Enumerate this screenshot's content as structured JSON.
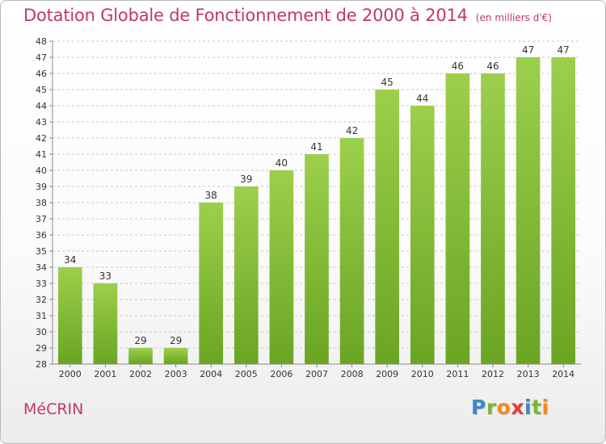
{
  "header": {
    "title": "Dotation Globale de Fonctionnement de 2000 à 2014",
    "unit": "(en milliers d'€)"
  },
  "footer": {
    "commune": "MéCRIN",
    "logo_letters": [
      "P",
      "r",
      "o",
      "x",
      "i",
      "t",
      "i"
    ],
    "logo_colors": [
      "#3d86c6",
      "#7fb431",
      "#f08a1c",
      "#e33b3b",
      "#3d86c6",
      "#7fb431",
      "#f08a1c"
    ]
  },
  "chart_data": {
    "type": "bar",
    "title": "Dotation Globale de Fonctionnement de 2000 à 2014",
    "categories": [
      "2000",
      "2001",
      "2002",
      "2003",
      "2004",
      "2005",
      "2006",
      "2007",
      "2008",
      "2009",
      "2010",
      "2011",
      "2012",
      "2013",
      "2014"
    ],
    "values": [
      34,
      33,
      29,
      29,
      38,
      39,
      40,
      41,
      42,
      45,
      44,
      46,
      46,
      47,
      47
    ],
    "ylim": [
      28,
      48
    ],
    "yticks": [
      28,
      29,
      30,
      31,
      32,
      33,
      34,
      35,
      36,
      37,
      38,
      39,
      40,
      41,
      42,
      43,
      44,
      45,
      46,
      47,
      48
    ],
    "grid": true,
    "legend": "none",
    "colors": {
      "bar_light": "#9ccf4c",
      "bar_dark": "#6aa522",
      "grid": "#c8c8c8",
      "label": "#333333"
    }
  }
}
